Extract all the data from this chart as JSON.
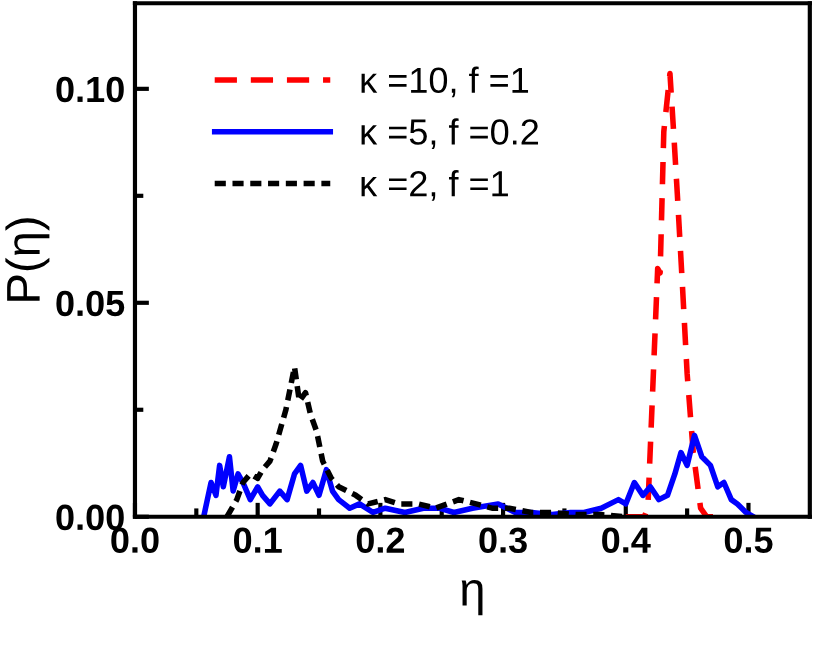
{
  "chart_data": {
    "type": "line",
    "xlabel": "η",
    "ylabel": "P(η)",
    "xlim": [
      0.0,
      0.55
    ],
    "ylim": [
      0.0,
      0.12
    ],
    "xticks": [
      {
        "value": 0.0,
        "label": "0.0"
      },
      0.1,
      0.2,
      0.3,
      0.4,
      0.5
    ],
    "yticks": [
      {
        "value": 0.0,
        "label": "0.00"
      },
      {
        "value": 0.05,
        "label": "0.05"
      },
      {
        "value": 0.1,
        "label": "0.10"
      }
    ],
    "legend": "top left",
    "grid": false,
    "series": [
      {
        "name": "κ =10, f =1",
        "color": "#ff0000",
        "line_style": "dashed",
        "x": [
          0.4,
          0.415,
          0.418,
          0.422,
          0.426,
          0.428,
          0.431,
          0.436,
          0.439,
          0.442,
          0.446,
          0.45,
          0.455,
          0.461,
          0.466,
          0.48
        ],
        "values": [
          0,
          0,
          0.002,
          0.03,
          0.058,
          0.057,
          0.09,
          0.1036,
          0.09,
          0.0755,
          0.055,
          0.0335,
          0.015,
          0.002,
          0,
          0
        ]
      },
      {
        "name": "κ =5, f =0.2",
        "color": "#0000ff",
        "line_style": "solid",
        "x": [
          0.056,
          0.062,
          0.066,
          0.069,
          0.072,
          0.077,
          0.08,
          0.084,
          0.088,
          0.094,
          0.1,
          0.104,
          0.11,
          0.118,
          0.124,
          0.13,
          0.135,
          0.14,
          0.145,
          0.15,
          0.156,
          0.161,
          0.166,
          0.175,
          0.183,
          0.194,
          0.204,
          0.22,
          0.235,
          0.248,
          0.26,
          0.275,
          0.296,
          0.31,
          0.323,
          0.34,
          0.355,
          0.366,
          0.38,
          0.394,
          0.4,
          0.407,
          0.414,
          0.42,
          0.427,
          0.434,
          0.44,
          0.445,
          0.45,
          0.456,
          0.462,
          0.469,
          0.475,
          0.48,
          0.486,
          0.491,
          0.498,
          0.504
        ],
        "values": [
          0,
          0.008,
          0.005,
          0.012,
          0.007,
          0.014,
          0.006,
          0.01,
          0.008,
          0.004,
          0.007,
          0.005,
          0.003,
          0.006,
          0.004,
          0.01,
          0.012,
          0.006,
          0.008,
          0.005,
          0.011,
          0.006,
          0.004,
          0.002,
          0.003,
          0.001,
          0.002,
          0.001,
          0.002,
          0.002,
          0.001,
          0.002,
          0.003,
          0.001,
          0.001,
          0.0005,
          0.001,
          0.001,
          0.002,
          0.004,
          0.003,
          0.008,
          0.005,
          0.007,
          0.004,
          0.005,
          0.01,
          0.015,
          0.012,
          0.019,
          0.014,
          0.012,
          0.007,
          0.008,
          0.004,
          0.003,
          0.001,
          0
        ]
      },
      {
        "name": "κ =2, f =1",
        "color": "#000000",
        "line_style": "dotted",
        "x": [
          0.075,
          0.083,
          0.088,
          0.094,
          0.1,
          0.104,
          0.11,
          0.115,
          0.123,
          0.13,
          0.134,
          0.139,
          0.143,
          0.148,
          0.153,
          0.16,
          0.166,
          0.18,
          0.19,
          0.204,
          0.215,
          0.231,
          0.245,
          0.264,
          0.278,
          0.291,
          0.305,
          0.323,
          0.34,
          0.36,
          0.38,
          0.399
        ],
        "values": [
          0,
          0.004,
          0.008,
          0.01,
          0.009,
          0.011,
          0.013,
          0.017,
          0.025,
          0.035,
          0.027,
          0.029,
          0.024,
          0.02,
          0.013,
          0.009,
          0.007,
          0.005,
          0.003,
          0.004,
          0.003,
          0.003,
          0.002,
          0.004,
          0.003,
          0.002,
          0.002,
          0.001,
          0.001,
          0.0005,
          0.0005,
          0
        ]
      }
    ]
  }
}
